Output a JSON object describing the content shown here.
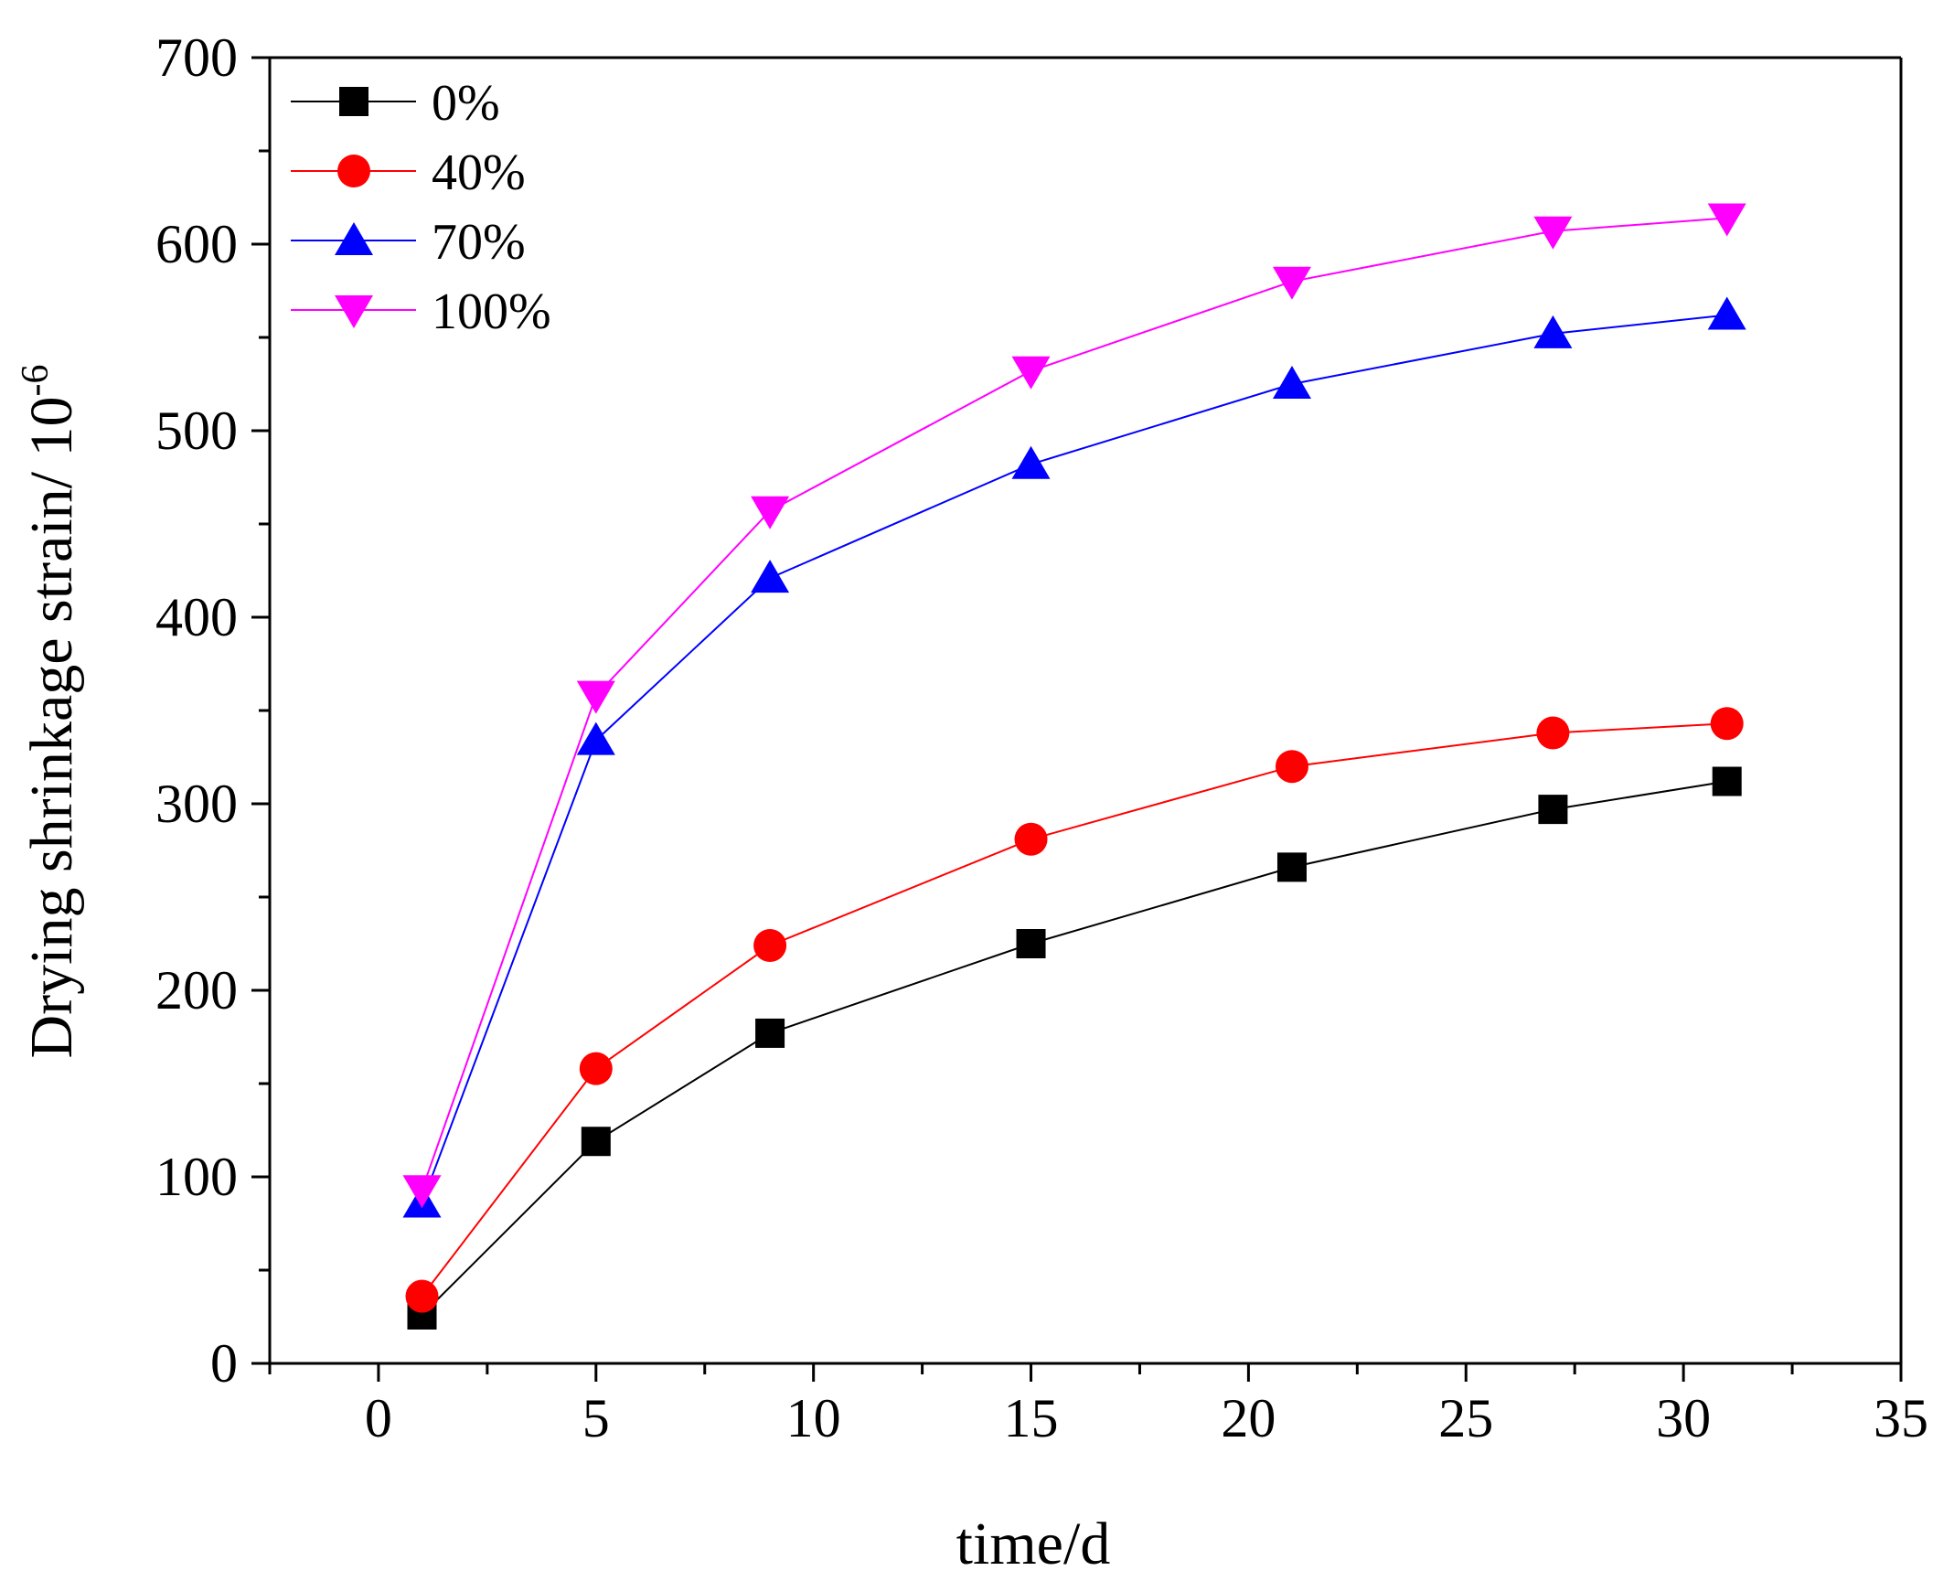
{
  "chart_data": {
    "type": "line",
    "title": "",
    "xlabel": "time/d",
    "ylabel": "Drying shrinkage strain/ 10",
    "ylabel_superscript": "-6",
    "xlim": [
      -2.5,
      35
    ],
    "ylim": [
      0,
      700
    ],
    "x_major_ticks": [
      0,
      5,
      10,
      15,
      20,
      25,
      30,
      35
    ],
    "x_tick_labels": [
      "0",
      "5",
      "10",
      "15",
      "20",
      "25",
      "30",
      "35"
    ],
    "y_major_ticks": [
      0,
      100,
      200,
      300,
      400,
      500,
      600,
      700
    ],
    "y_tick_labels": [
      "0",
      "100",
      "200",
      "300",
      "400",
      "500",
      "600",
      "700"
    ],
    "grid": false,
    "legend_position": "top-left",
    "x": [
      1,
      5,
      9,
      15,
      21,
      27,
      31
    ],
    "series": [
      {
        "name": "0%",
        "color": "#000000",
        "marker": "square",
        "values": [
          26,
          119,
          177,
          225,
          266,
          297,
          312
        ]
      },
      {
        "name": "40%",
        "color": "#ff0000",
        "marker": "circle",
        "values": [
          36,
          158,
          224,
          281,
          320,
          338,
          343
        ]
      },
      {
        "name": "70%",
        "color": "#0000ff",
        "marker": "triangle-up",
        "values": [
          86,
          334,
          421,
          482,
          525,
          552,
          562
        ]
      },
      {
        "name": "100%",
        "color": "#ff00ff",
        "marker": "triangle-down",
        "values": [
          93,
          358,
          457,
          532,
          580,
          607,
          614
        ]
      }
    ]
  }
}
